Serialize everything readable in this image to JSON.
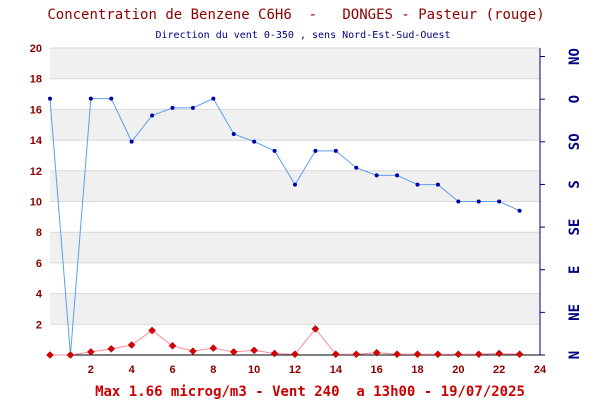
{
  "colors": {
    "title": "#8b0000",
    "footer": "#cc0000",
    "axis_labels": "#8b0000",
    "wind_labels": "#000080",
    "band": "#f0f0f0",
    "grid": "#d8d8d8",
    "benzene_line": "#ff8aa0",
    "benzene_marker": "#dd0000",
    "wind_line": "#5aa0ee",
    "wind_marker": "#0000aa"
  },
  "chart_data": {
    "type": "line",
    "title": "Concentration de Benzene C6H6  -   DONGES - Pasteur (rouge)",
    "subtitle": "Direction du vent 0-350 , sens Nord-Est-Sud-Ouest",
    "footer": "Max 1.66 microg/m3 - Vent 240  a 13h00 - 19/07/2025",
    "xlim": [
      0,
      24
    ],
    "x_ticks": [
      "2",
      "4",
      "6",
      "8",
      "10",
      "12",
      "14",
      "16",
      "18",
      "20",
      "22",
      "24"
    ],
    "ylim": [
      0,
      20
    ],
    "y_ticks": [
      "2",
      "4",
      "6",
      "8",
      "10",
      "12",
      "14",
      "16",
      "18",
      "20"
    ],
    "y2_labels": [
      "N",
      "NE",
      "E",
      "SE",
      "S",
      "SO",
      "O",
      "NO"
    ],
    "grid": true,
    "series": [
      {
        "axis": "left",
        "marker": "diamond",
        "x": [
          0,
          1,
          2,
          3,
          4,
          5,
          6,
          7,
          8,
          9,
          10,
          11,
          12,
          13,
          14,
          15,
          16,
          17,
          18,
          19,
          20,
          21,
          22,
          23
        ],
        "values": [
          0.0,
          0.0,
          0.2,
          0.4,
          0.65,
          1.6,
          0.6,
          0.25,
          0.45,
          0.2,
          0.3,
          0.1,
          0.05,
          1.7,
          0.05,
          0.05,
          0.15,
          0.05,
          0.05,
          0.05,
          0.05,
          0.05,
          0.1,
          0.05
        ]
      },
      {
        "axis": "left",
        "marker": "dot",
        "x": [
          0,
          1,
          2,
          3,
          4,
          5,
          6,
          7,
          8,
          9,
          10,
          11,
          12,
          13,
          14,
          15,
          16,
          17,
          18,
          19,
          20,
          21,
          22,
          23
        ],
        "values": [
          16.7,
          0.0,
          16.7,
          16.7,
          13.9,
          15.6,
          16.1,
          16.1,
          16.7,
          14.4,
          13.9,
          13.3,
          11.1,
          13.3,
          13.3,
          12.2,
          11.7,
          11.7,
          11.1,
          11.1,
          10.0,
          10.0,
          10.0,
          9.4
        ]
      }
    ]
  }
}
